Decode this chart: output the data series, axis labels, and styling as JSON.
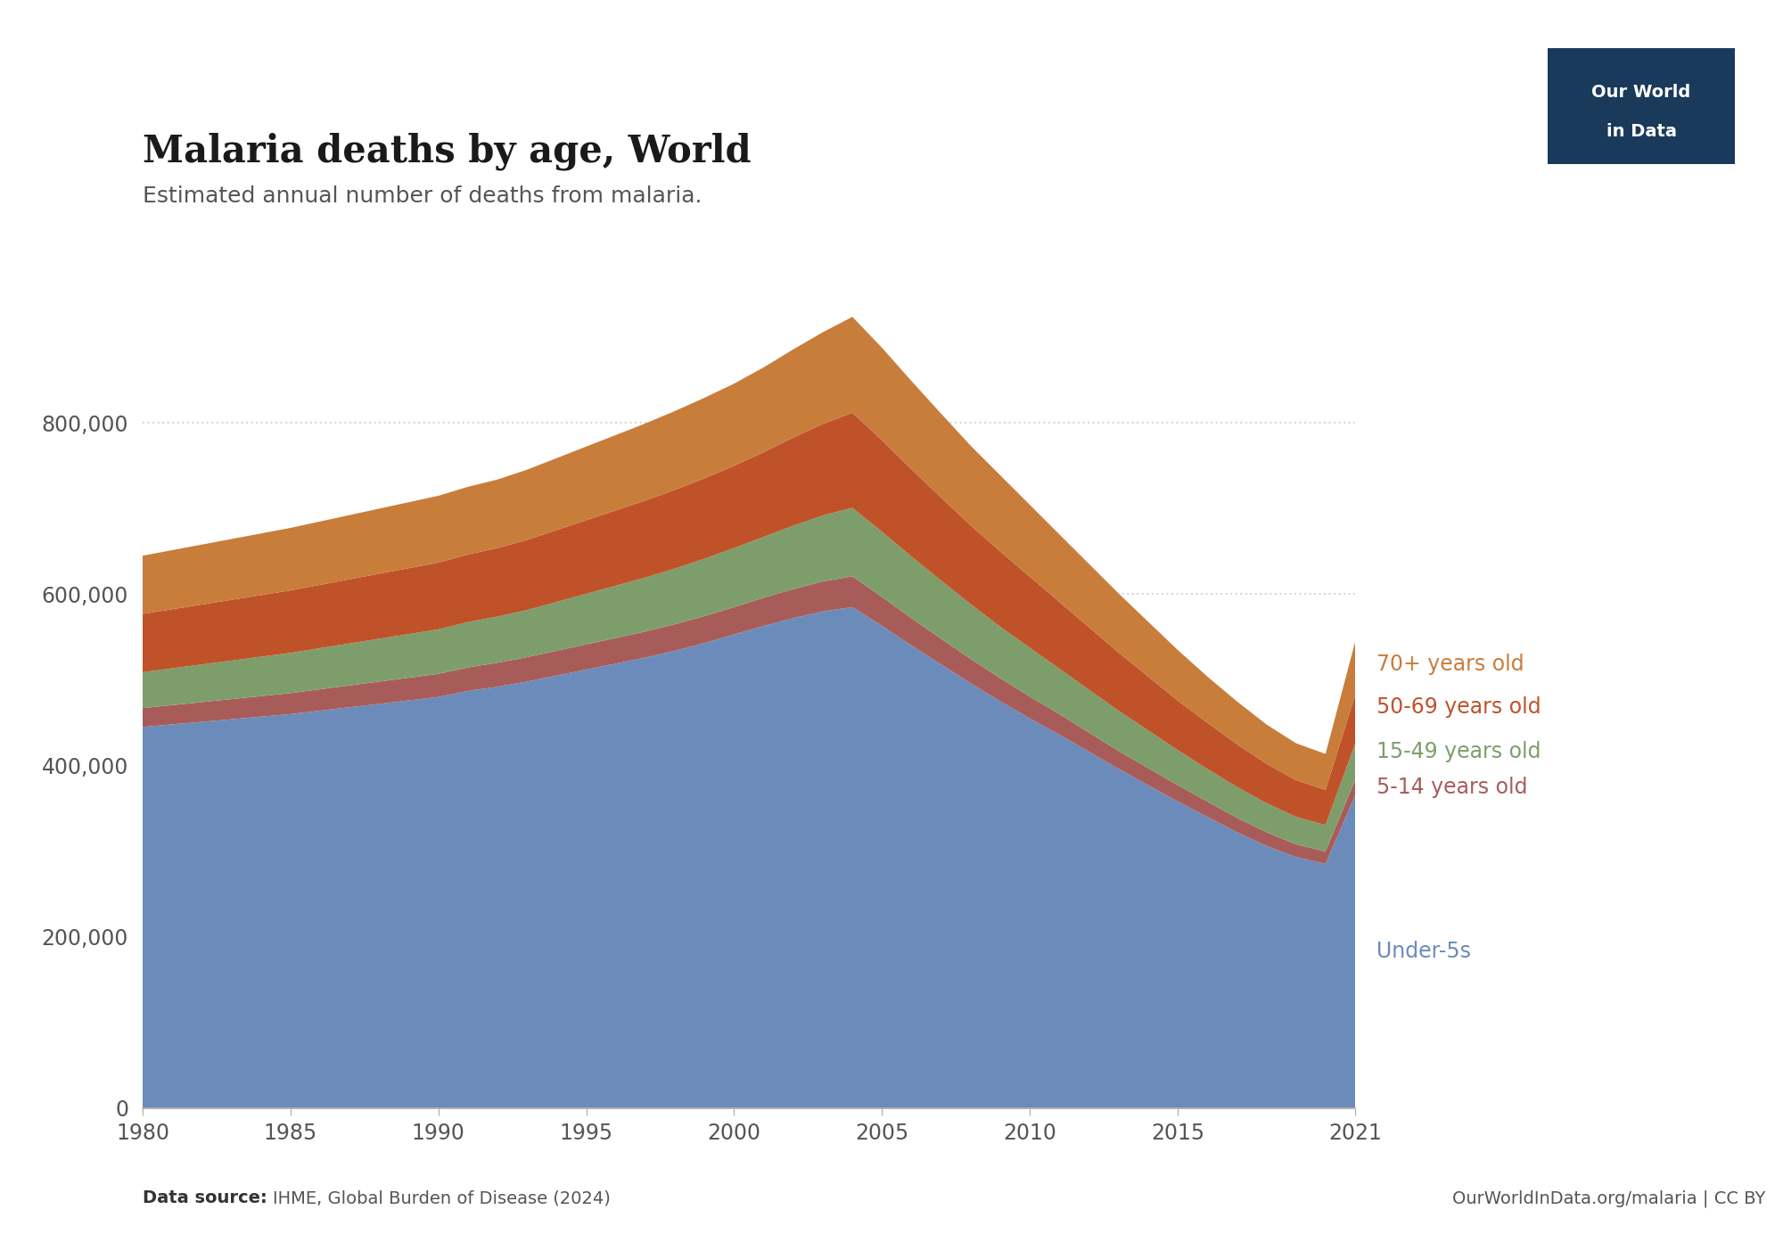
{
  "title": "Malaria deaths by age, World",
  "subtitle": "Estimated annual number of deaths from malaria.",
  "source_left": "Data source: IHME, Global Burden of Disease (2024)",
  "source_right": "OurWorldInData.org/malaria | CC BY",
  "years": [
    1980,
    1981,
    1982,
    1983,
    1984,
    1985,
    1986,
    1987,
    1988,
    1989,
    1990,
    1991,
    1992,
    1993,
    1994,
    1995,
    1996,
    1997,
    1998,
    1999,
    2000,
    2001,
    2002,
    2003,
    2004,
    2005,
    2006,
    2007,
    2008,
    2009,
    2010,
    2011,
    2012,
    2013,
    2014,
    2015,
    2016,
    2017,
    2018,
    2019,
    2020,
    2021
  ],
  "under5": [
    445000,
    448000,
    451000,
    454000,
    457000,
    460000,
    464000,
    468000,
    472000,
    476000,
    480000,
    487000,
    492000,
    498000,
    505000,
    512000,
    519000,
    526000,
    534000,
    543000,
    553000,
    563000,
    572000,
    580000,
    585000,
    563000,
    540000,
    518000,
    496000,
    475000,
    455000,
    436000,
    416000,
    396000,
    377000,
    358000,
    340000,
    322000,
    306000,
    293000,
    285000,
    365000
  ],
  "age5_14": [
    22000,
    22500,
    23000,
    23500,
    24000,
    24500,
    25000,
    25500,
    26000,
    26500,
    27000,
    27500,
    28000,
    28500,
    29000,
    29500,
    30000,
    30500,
    31000,
    31500,
    32000,
    33000,
    34000,
    35000,
    36000,
    34000,
    32000,
    30000,
    28500,
    27000,
    25500,
    24000,
    22500,
    21000,
    20000,
    19000,
    18000,
    17000,
    16000,
    15000,
    14500,
    18000
  ],
  "age15_49": [
    42000,
    43000,
    44000,
    45000,
    46000,
    47000,
    48000,
    49000,
    50000,
    51000,
    52000,
    53000,
    54000,
    55000,
    57000,
    59000,
    61000,
    63000,
    65000,
    67000,
    69000,
    71000,
    74000,
    77000,
    80000,
    76000,
    72000,
    68000,
    64000,
    60000,
    57000,
    53000,
    50000,
    47000,
    44000,
    41000,
    38000,
    36000,
    34000,
    32000,
    31000,
    42000
  ],
  "age50_69": [
    68000,
    69000,
    70000,
    71000,
    72000,
    73000,
    74000,
    75000,
    76000,
    77000,
    78000,
    79000,
    80000,
    82000,
    84000,
    86000,
    88000,
    90000,
    92000,
    94000,
    96000,
    99000,
    103000,
    107000,
    111000,
    107000,
    102000,
    97000,
    92000,
    88000,
    83000,
    78000,
    73000,
    68000,
    63000,
    58000,
    54000,
    50000,
    46000,
    43000,
    41000,
    57000
  ],
  "age70plus": [
    68000,
    69000,
    70000,
    71000,
    72000,
    73000,
    74000,
    75000,
    76000,
    77000,
    78000,
    79000,
    80000,
    82000,
    84000,
    86000,
    88000,
    90000,
    92000,
    94000,
    96000,
    99000,
    103000,
    107000,
    112000,
    108000,
    103000,
    98000,
    93000,
    89000,
    84000,
    79000,
    74000,
    69000,
    64000,
    59000,
    54000,
    50000,
    46000,
    43000,
    42000,
    62000
  ],
  "colors": {
    "under5": "#6b8cba",
    "age5_14": "#a85c5a",
    "age15_49": "#7d9e6b",
    "age50_69": "#c0522a",
    "age70plus": "#c87d3b"
  },
  "label_colors": {
    "under5": "#6b8cba",
    "age5_14": "#a85c5a",
    "age15_49": "#7d9e6b",
    "age50_69": "#c0522a",
    "age70plus": "#c87d3b"
  },
  "labels": {
    "under5": "Under-5s",
    "age5_14": "5-14 years old",
    "age15_49": "15-49 years old",
    "age50_69": "50-69 years old",
    "age70plus": "70+ years old"
  },
  "ylim": [
    0,
    1000000
  ],
  "yticks": [
    0,
    200000,
    400000,
    600000,
    800000
  ],
  "xticks": [
    1980,
    1985,
    1990,
    1995,
    2000,
    2005,
    2010,
    2015,
    2021
  ],
  "background_color": "#ffffff",
  "grid_color": "#cccccc",
  "logo_bg": "#1a3a5c",
  "logo_line1": "Our World",
  "logo_line2": "in Data"
}
